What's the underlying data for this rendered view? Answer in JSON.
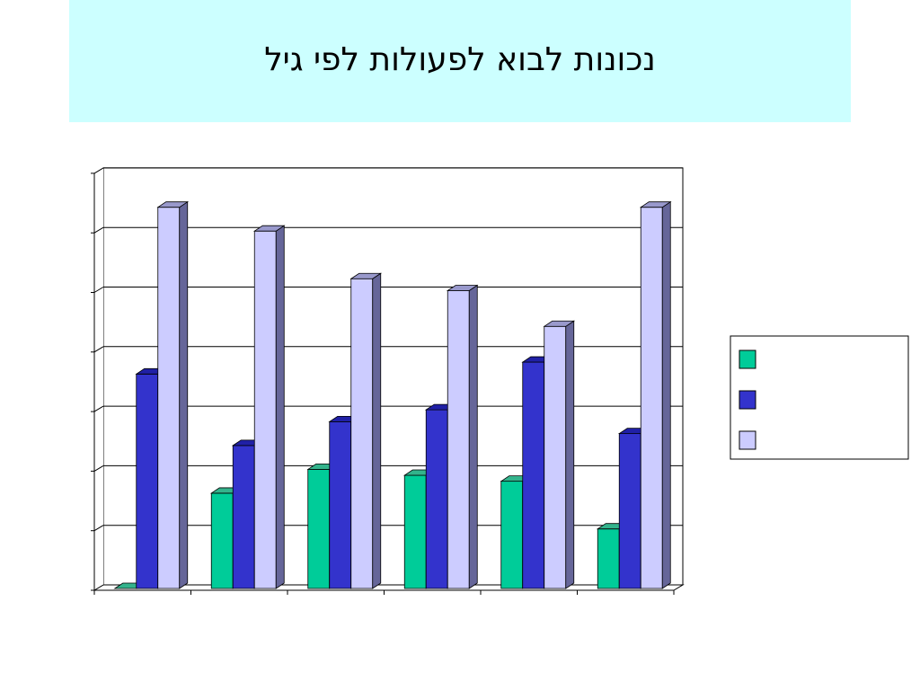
{
  "page": {
    "title": "נכונות לבוא לפעולות לפי גיל"
  },
  "colors": {
    "series": [
      "#00cc99",
      "#3333cc",
      "#ccccff"
    ],
    "sides": [
      "#007a5c",
      "#1a1a80",
      "#666699"
    ],
    "tops": [
      "#33b38c",
      "#2020a6",
      "#9999cc"
    ],
    "title_background": "#ccffff",
    "grid": "#000000"
  },
  "chart_data": {
    "type": "bar",
    "categories": [
      "",
      "",
      "",
      "",
      "",
      ""
    ],
    "series": [
      {
        "values": [
          0,
          16,
          20,
          19,
          18,
          10
        ]
      },
      {
        "values": [
          36,
          24,
          28,
          30,
          38,
          26
        ]
      },
      {
        "values": [
          64,
          60,
          52,
          50,
          44,
          64
        ]
      }
    ],
    "ylim": [
      0,
      70
    ],
    "yticks": [
      0,
      10,
      20,
      30,
      40,
      50,
      60,
      70
    ],
    "grid": true,
    "legend_position": "right",
    "style": "3d-clustered-column"
  }
}
